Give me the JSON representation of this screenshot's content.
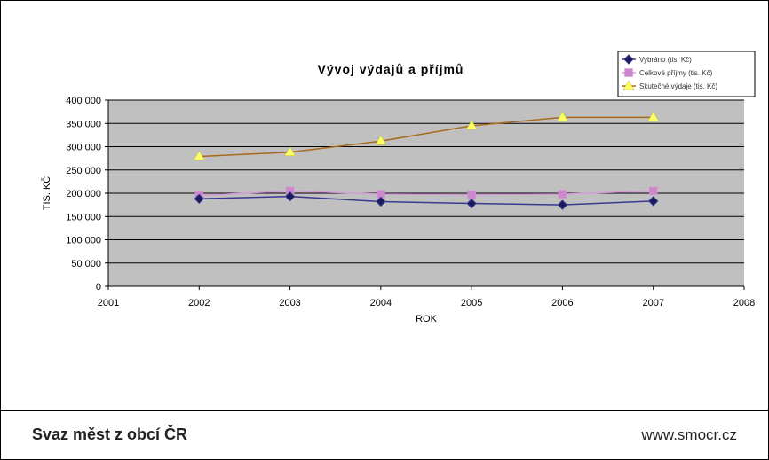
{
  "chart_data": {
    "type": "line",
    "title": "Vývoj výdajů a příjmů",
    "xlabel": "ROK",
    "ylabel": "TIS. KČ",
    "xlim": [
      2001,
      2008
    ],
    "ylim": [
      0,
      400000
    ],
    "x_ticks": [
      "2001",
      "2002",
      "2003",
      "2004",
      "2005",
      "2006",
      "2007",
      "2008"
    ],
    "y_ticks": [
      "0",
      "50 000",
      "100 000",
      "150 000",
      "200 000",
      "250 000",
      "300 000",
      "350 000",
      "400 000"
    ],
    "x": [
      2002,
      2003,
      2004,
      2005,
      2006,
      2007
    ],
    "grid": true,
    "legend_position": "top-right",
    "series": [
      {
        "name": "Vybráno (tis. Kč)",
        "values": [
          188000,
          193000,
          182000,
          178000,
          175000,
          183000
        ],
        "color": "#1a1a5e",
        "line_color": "#3a3a8c",
        "marker": "diamond"
      },
      {
        "name": "Celkové příjmy (tis. Kč)",
        "values": [
          195000,
          205000,
          198000,
          197000,
          198000,
          205000
        ],
        "color": "#cc88cc",
        "line_color": "#d49ad4",
        "marker": "square"
      },
      {
        "name": "Skutečné výdaje (tis. Kč)",
        "values": [
          279000,
          288000,
          312000,
          345000,
          363000,
          363000
        ],
        "color": "#ffff66",
        "line_color": "#a86a1e",
        "marker": "triangle"
      }
    ]
  },
  "footer": {
    "organization": "Svaz měst z obcí ČR",
    "website": "www.smocr.cz"
  }
}
